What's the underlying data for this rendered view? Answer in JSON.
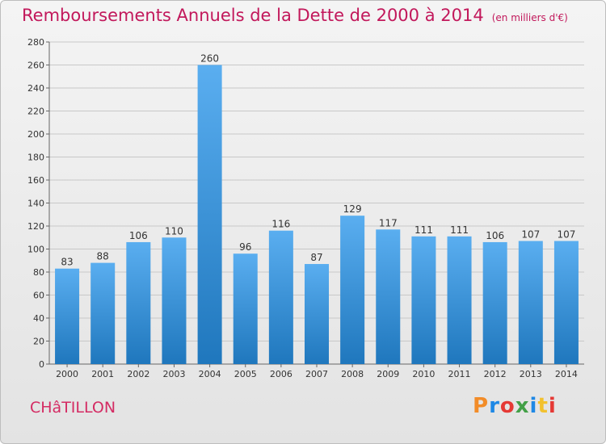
{
  "header": {
    "title": "Remboursements Annuels de la Dette de 2000 à 2014",
    "unit": "(en milliers d'€)"
  },
  "footer": {
    "city": "CHâTILLON",
    "logo": "Proxiti"
  },
  "colors": {
    "title": "#c2185b",
    "bar_top": "#5aaef0",
    "bar_bottom": "#1f77bd"
  },
  "chart_data": {
    "type": "bar",
    "title": "Remboursements Annuels de la Dette de 2000 à 2014",
    "xlabel": "",
    "ylabel": "",
    "categories": [
      "2000",
      "2001",
      "2002",
      "2003",
      "2004",
      "2005",
      "2006",
      "2007",
      "2008",
      "2009",
      "2010",
      "2011",
      "2012",
      "2013",
      "2014"
    ],
    "values": [
      83,
      88,
      106,
      110,
      260,
      96,
      116,
      87,
      129,
      117,
      111,
      111,
      106,
      107,
      107
    ],
    "ylim": [
      0,
      280
    ],
    "yticks": [
      0,
      20,
      40,
      60,
      80,
      100,
      120,
      140,
      160,
      180,
      200,
      220,
      240,
      260,
      280
    ],
    "grid": true
  }
}
